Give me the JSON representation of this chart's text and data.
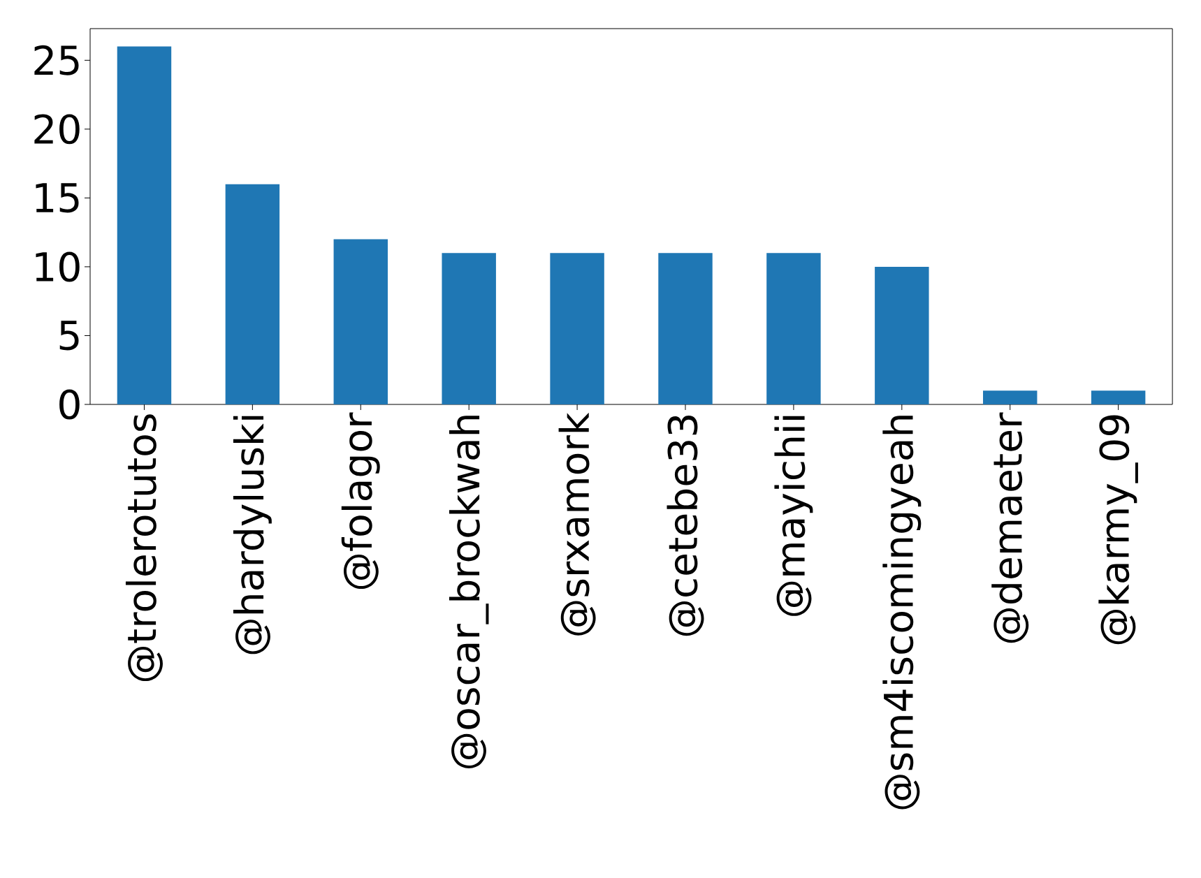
{
  "chart_data": {
    "type": "bar",
    "categories": [
      "@trolerotutos",
      "@hardyluski",
      "@folagor",
      "@oscar_brockwah",
      "@srxamork",
      "@cetebe33",
      "@mayichii",
      "@sm4iscomingyeah",
      "@demaeter",
      "@karmy_09"
    ],
    "values": [
      26,
      16,
      12,
      11,
      11,
      11,
      11,
      10,
      1,
      1
    ],
    "color": "#1f77b4",
    "ylim": [
      0,
      27.3
    ],
    "yticks": [
      0,
      5,
      10,
      15,
      20,
      25
    ]
  }
}
